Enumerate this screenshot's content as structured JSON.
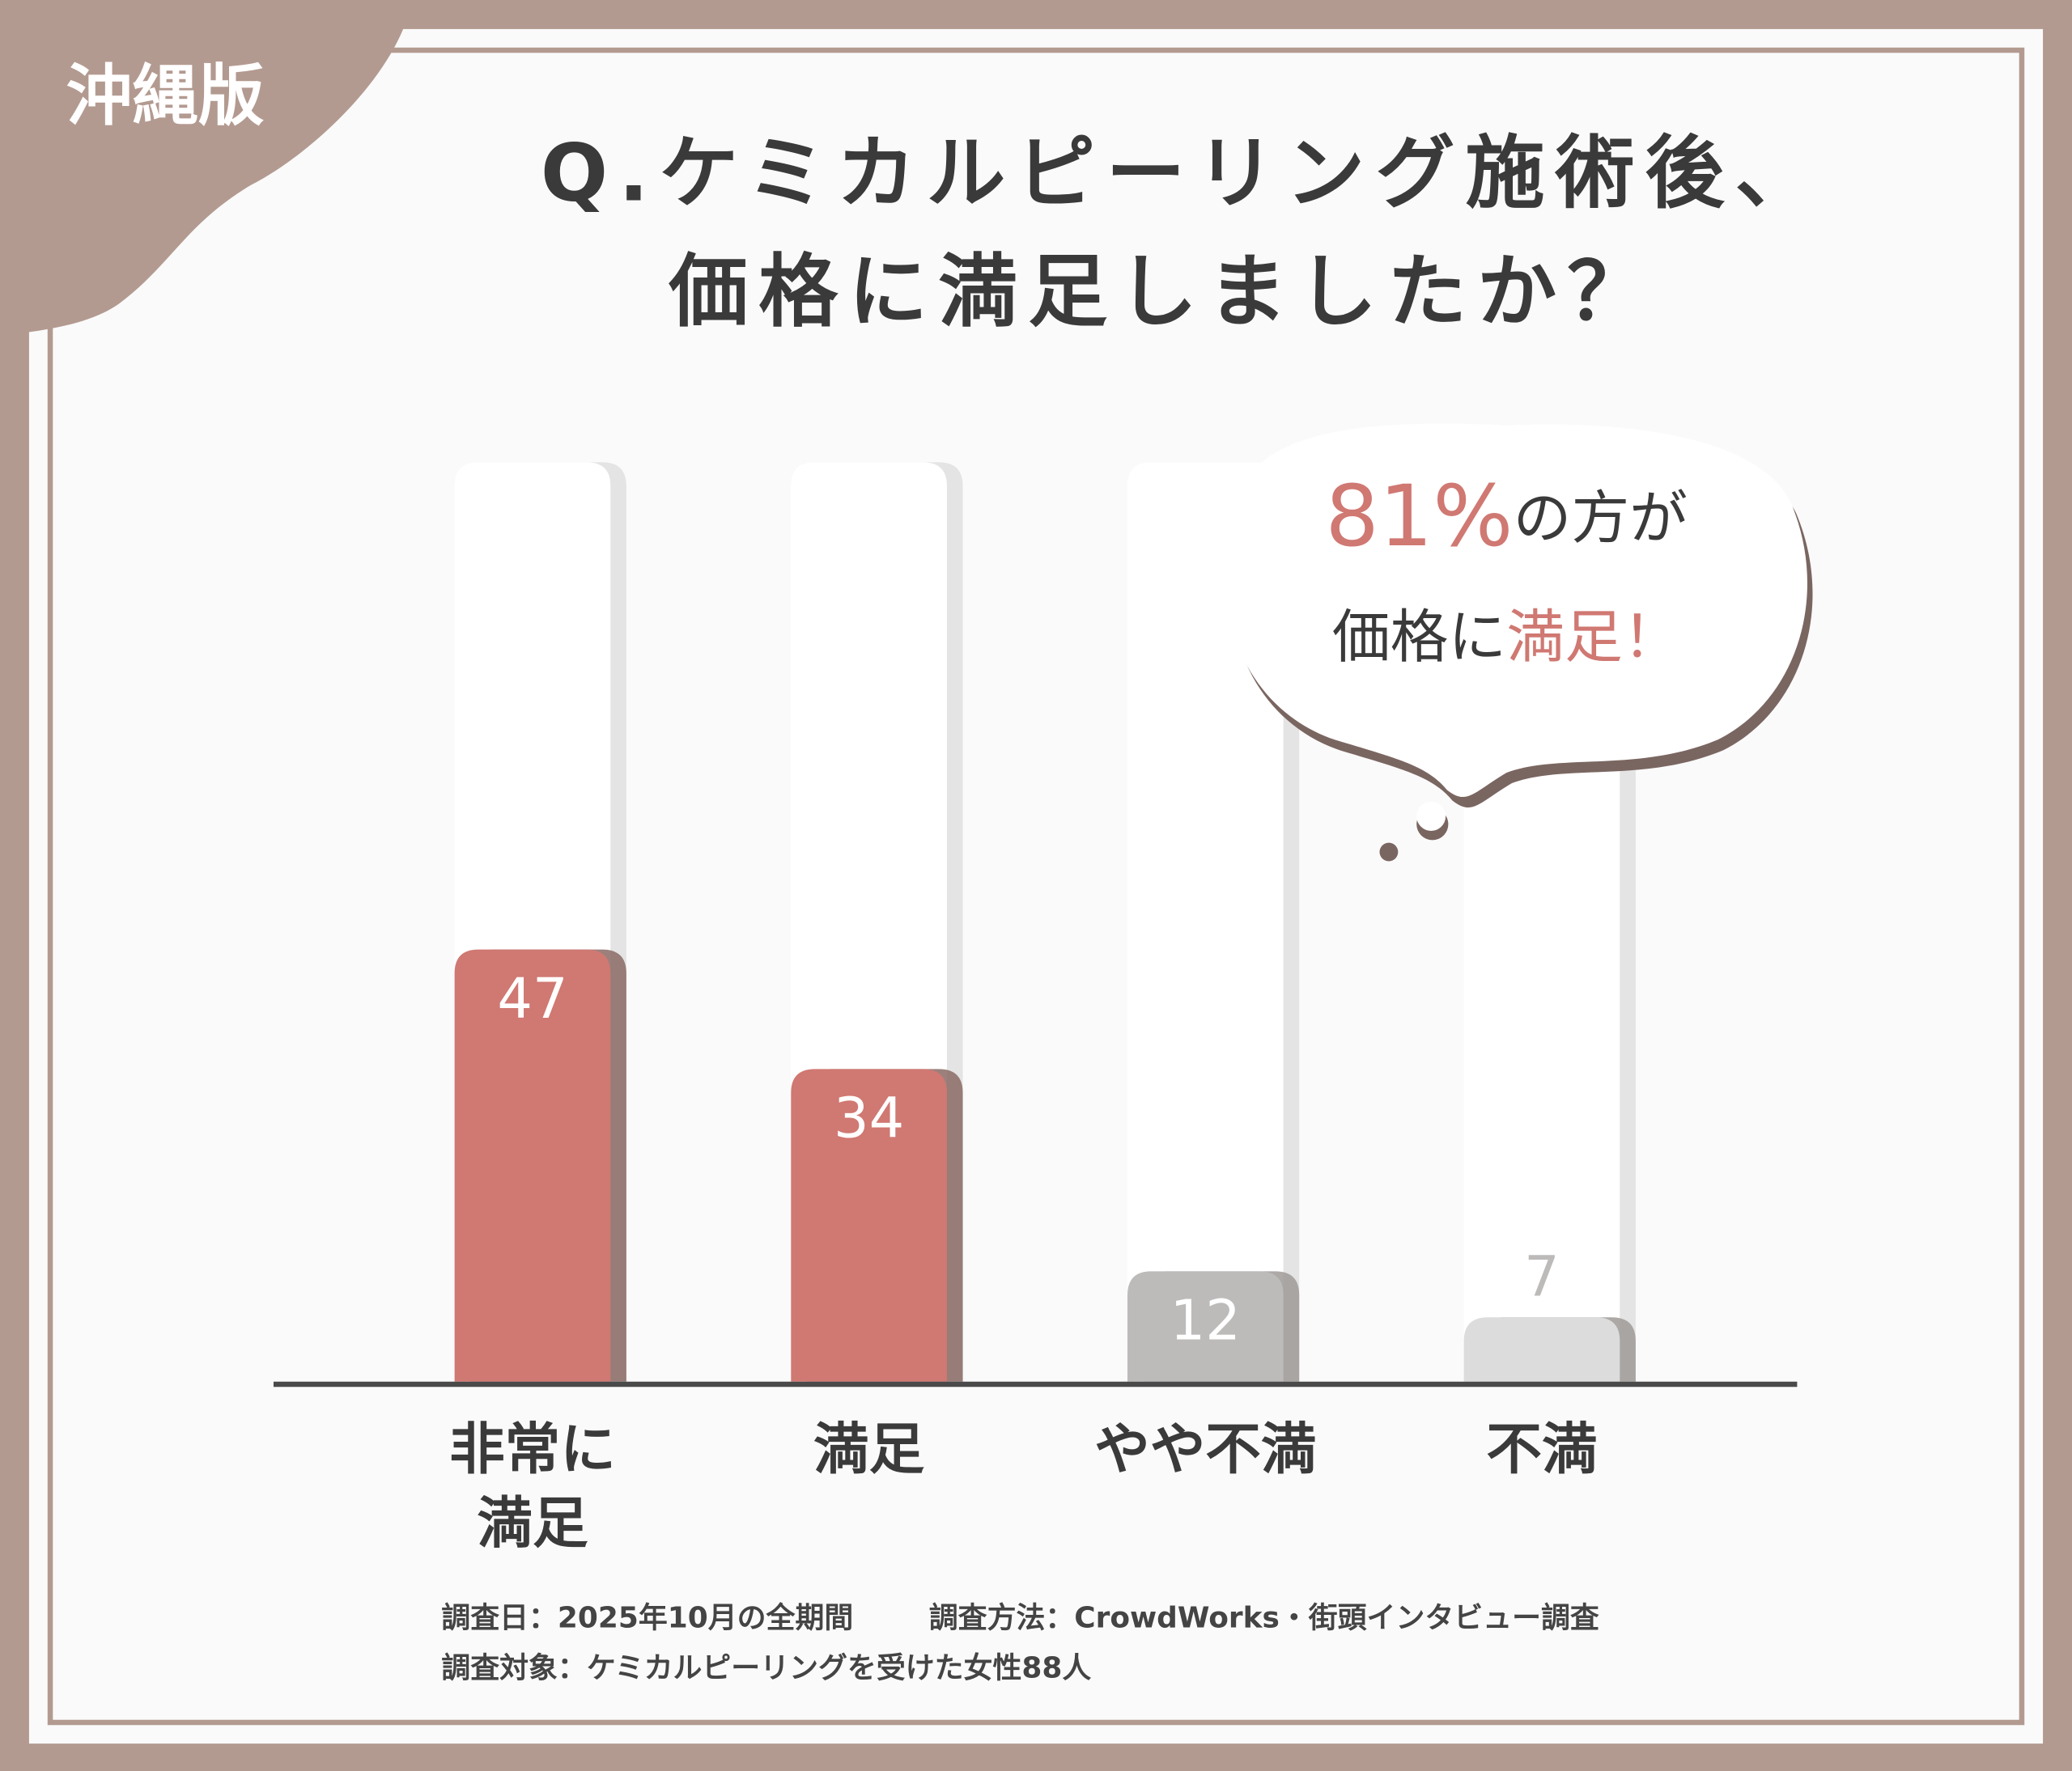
{
  "badge": "沖縄版",
  "chart_data": {
    "type": "bar",
    "title_lines": [
      "Q.ケミカルピーリング施術後、",
      "価格に満足しましたか？"
    ],
    "categories": [
      [
        "非常に",
        "満足"
      ],
      [
        "満足"
      ],
      [
        "やや不満"
      ],
      [
        "不満"
      ]
    ],
    "values": [
      47,
      34,
      12,
      7
    ],
    "colors": [
      "#d07872",
      "#d07872",
      "#bdbbba",
      "#dcdcdc"
    ],
    "ylim": [
      0,
      100
    ]
  },
  "callout": {
    "line1": [
      {
        "text": "81%",
        "color": "#d07872"
      },
      {
        "text": "の方が",
        "color": "#3a3a3a"
      }
    ],
    "line2": [
      {
        "text": "価格に",
        "color": "#3a3a3a"
      },
      {
        "text": "満足！",
        "color": "#d07872"
      }
    ]
  },
  "notes": {
    "line1": [
      "調査日：2025年10月の全期間",
      "調査方法：CrowdWorks・街頭インタビュー調査"
    ],
    "line2": [
      "調査対象：ケミカルピーリングを受けた女性88人"
    ]
  }
}
